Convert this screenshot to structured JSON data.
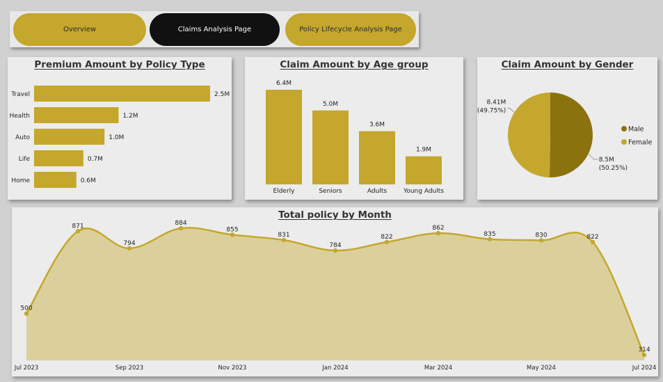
{
  "nav": {
    "overview": "Overview",
    "claims": "Claims Analysis Page",
    "lifecycle": "Policy Lifecycle Analysis Page"
  },
  "colors": {
    "gold": "#c4a72c",
    "dark_gold": "#8a720f",
    "area_fill": "#dbd09c",
    "line": "#c4a72c"
  },
  "chart_data": [
    {
      "type": "bar",
      "orientation": "horizontal",
      "title": "Premium Amount by Policy Type",
      "categories": [
        "Travel",
        "Health",
        "Auto",
        "Life",
        "Home"
      ],
      "values": [
        2.5,
        1.2,
        1.0,
        0.7,
        0.6
      ],
      "labels": [
        "2.5M",
        "1.2M",
        "1.0M",
        "0.7M",
        "0.6M"
      ]
    },
    {
      "type": "bar",
      "orientation": "vertical",
      "title": "Claim Amount by Age group",
      "categories": [
        "Elderly",
        "Seniors",
        "Adults",
        "Young Adults"
      ],
      "values": [
        6.4,
        5.0,
        3.6,
        1.9
      ],
      "labels": [
        "6.4M",
        "5.0M",
        "3.6M",
        "1.9M"
      ]
    },
    {
      "type": "pie",
      "title": "Claim Amount by Gender",
      "categories": [
        "Male",
        "Female"
      ],
      "values": [
        8.5,
        8.41
      ],
      "value_labels": [
        "8.5M",
        "8.41M"
      ],
      "percent_labels": [
        "(50.25%)",
        "(49.75%)"
      ],
      "legend": "right"
    },
    {
      "type": "area",
      "title": "Total policy by Month",
      "x": [
        "2023-07",
        "2023-08",
        "2023-09",
        "2023-10",
        "2023-11",
        "2023-12",
        "2024-01",
        "2024-02",
        "2024-03",
        "2024-04",
        "2024-05",
        "2024-06",
        "2024-07"
      ],
      "values": [
        500,
        871,
        794,
        884,
        855,
        831,
        784,
        822,
        862,
        835,
        830,
        822,
        314
      ],
      "tick_labels": [
        "Jul 2023",
        "Sep 2023",
        "Nov 2023",
        "Jan 2024",
        "Mar 2024",
        "May 2024",
        "Jul 2024"
      ],
      "ylim": [
        280,
        900
      ]
    }
  ]
}
